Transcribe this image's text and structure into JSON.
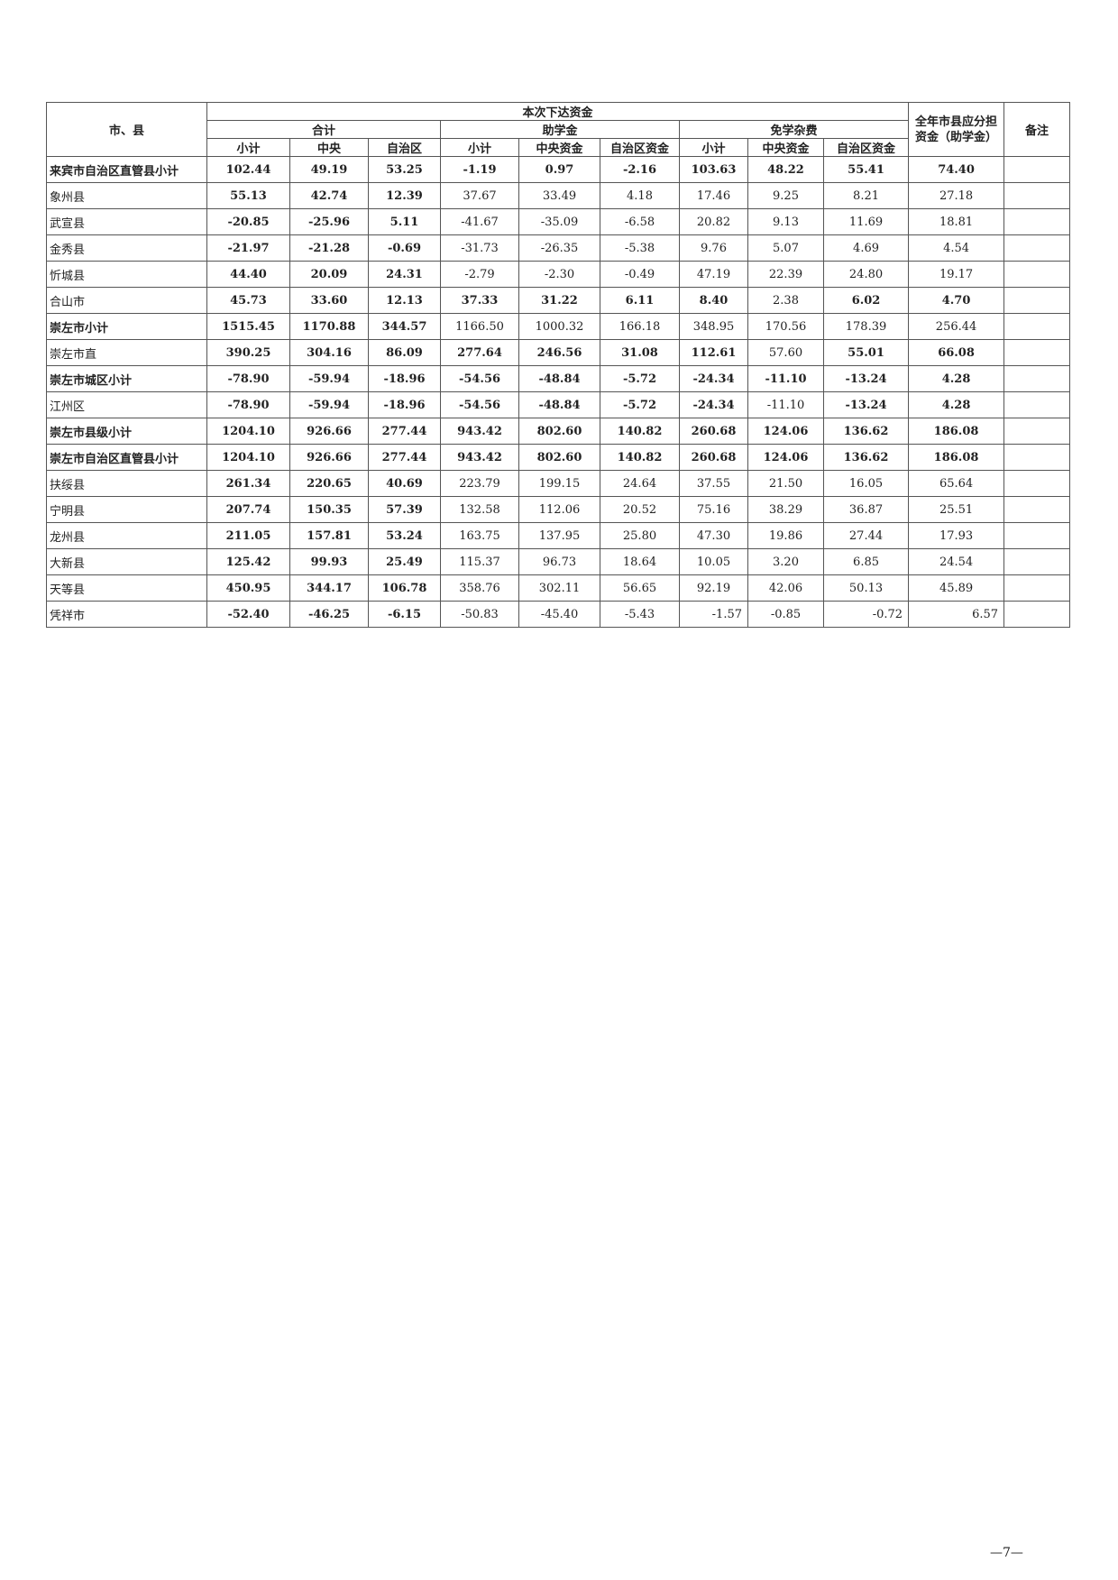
{
  "header": {
    "region": "市、县",
    "this_batch": "本次下达资金",
    "total": "合计",
    "aid": "助学金",
    "fee_waiver": "免学杂费",
    "annual": "全年市县应分担资金（助学金）",
    "remark": "备注",
    "sub": [
      "小计",
      "中央",
      "自治区",
      "小计",
      "中央资金",
      "自治区资金",
      "小计",
      "中央资金",
      "自治区资金"
    ]
  },
  "rows": [
    {
      "name": "来宾市自治区直管县小计",
      "name_bold": true,
      "cells": [
        "102.44",
        "49.19",
        "53.25",
        "-1.19",
        "0.97",
        "-2.16",
        "103.63",
        "48.22",
        "55.41",
        "74.40",
        ""
      ],
      "bold": [
        1,
        1,
        1,
        1,
        1,
        1,
        1,
        1,
        1,
        1,
        0
      ]
    },
    {
      "name": "象州县",
      "name_bold": false,
      "cells": [
        "55.13",
        "42.74",
        "12.39",
        "37.67",
        "33.49",
        "4.18",
        "17.46",
        "9.25",
        "8.21",
        "27.18",
        ""
      ],
      "bold": [
        1,
        1,
        1,
        0,
        0,
        0,
        0,
        0,
        0,
        0,
        0
      ]
    },
    {
      "name": "武宣县",
      "name_bold": false,
      "cells": [
        "-20.85",
        "-25.96",
        "5.11",
        "-41.67",
        "-35.09",
        "-6.58",
        "20.82",
        "9.13",
        "11.69",
        "18.81",
        ""
      ],
      "bold": [
        1,
        1,
        1,
        0,
        0,
        0,
        0,
        0,
        0,
        0,
        0
      ]
    },
    {
      "name": "金秀县",
      "name_bold": false,
      "cells": [
        "-21.97",
        "-21.28",
        "-0.69",
        "-31.73",
        "-26.35",
        "-5.38",
        "9.76",
        "5.07",
        "4.69",
        "4.54",
        ""
      ],
      "bold": [
        1,
        1,
        1,
        0,
        0,
        0,
        0,
        0,
        0,
        0,
        0
      ]
    },
    {
      "name": "忻城县",
      "name_bold": false,
      "cells": [
        "44.40",
        "20.09",
        "24.31",
        "-2.79",
        "-2.30",
        "-0.49",
        "47.19",
        "22.39",
        "24.80",
        "19.17",
        ""
      ],
      "bold": [
        1,
        1,
        1,
        0,
        0,
        0,
        0,
        0,
        0,
        0,
        0
      ]
    },
    {
      "name": "合山市",
      "name_bold": false,
      "cells": [
        "45.73",
        "33.60",
        "12.13",
        "37.33",
        "31.22",
        "6.11",
        "8.40",
        "2.38",
        "6.02",
        "4.70",
        ""
      ],
      "bold": [
        1,
        1,
        1,
        1,
        1,
        1,
        1,
        0,
        1,
        1,
        0
      ]
    },
    {
      "name": "崇左市小计",
      "name_bold": true,
      "cells": [
        "1515.45",
        "1170.88",
        "344.57",
        "1166.50",
        "1000.32",
        "166.18",
        "348.95",
        "170.56",
        "178.39",
        "256.44",
        ""
      ],
      "bold": [
        1,
        1,
        1,
        0,
        0,
        0,
        0,
        0,
        0,
        0,
        0
      ]
    },
    {
      "name": "崇左市直",
      "name_bold": false,
      "cells": [
        "390.25",
        "304.16",
        "86.09",
        "277.64",
        "246.56",
        "31.08",
        "112.61",
        "57.60",
        "55.01",
        "66.08",
        ""
      ],
      "bold": [
        1,
        1,
        1,
        1,
        1,
        1,
        1,
        0,
        1,
        1,
        0
      ]
    },
    {
      "name": "崇左市城区小计",
      "name_bold": true,
      "cells": [
        "-78.90",
        "-59.94",
        "-18.96",
        "-54.56",
        "-48.84",
        "-5.72",
        "-24.34",
        "-11.10",
        "-13.24",
        "4.28",
        ""
      ],
      "bold": [
        1,
        1,
        1,
        1,
        1,
        1,
        1,
        1,
        1,
        1,
        0
      ]
    },
    {
      "name": "江州区",
      "name_bold": false,
      "cells": [
        "-78.90",
        "-59.94",
        "-18.96",
        "-54.56",
        "-48.84",
        "-5.72",
        "-24.34",
        "-11.10",
        "-13.24",
        "4.28",
        ""
      ],
      "bold": [
        1,
        1,
        1,
        1,
        1,
        1,
        1,
        0,
        1,
        1,
        0
      ]
    },
    {
      "name": "崇左市县级小计",
      "name_bold": true,
      "cells": [
        "1204.10",
        "926.66",
        "277.44",
        "943.42",
        "802.60",
        "140.82",
        "260.68",
        "124.06",
        "136.62",
        "186.08",
        ""
      ],
      "bold": [
        1,
        1,
        1,
        1,
        1,
        1,
        1,
        1,
        1,
        1,
        0
      ]
    },
    {
      "name": "崇左市自治区直管县小计",
      "name_bold": true,
      "cells": [
        "1204.10",
        "926.66",
        "277.44",
        "943.42",
        "802.60",
        "140.82",
        "260.68",
        "124.06",
        "136.62",
        "186.08",
        ""
      ],
      "bold": [
        1,
        1,
        1,
        1,
        1,
        1,
        1,
        1,
        1,
        1,
        0
      ]
    },
    {
      "name": "扶绥县",
      "name_bold": false,
      "cells": [
        "261.34",
        "220.65",
        "40.69",
        "223.79",
        "199.15",
        "24.64",
        "37.55",
        "21.50",
        "16.05",
        "65.64",
        ""
      ],
      "bold": [
        1,
        1,
        1,
        0,
        0,
        0,
        0,
        0,
        0,
        0,
        0
      ]
    },
    {
      "name": "宁明县",
      "name_bold": false,
      "cells": [
        "207.74",
        "150.35",
        "57.39",
        "132.58",
        "112.06",
        "20.52",
        "75.16",
        "38.29",
        "36.87",
        "25.51",
        ""
      ],
      "bold": [
        1,
        1,
        1,
        0,
        0,
        0,
        0,
        0,
        0,
        0,
        0
      ]
    },
    {
      "name": "龙州县",
      "name_bold": false,
      "cells": [
        "211.05",
        "157.81",
        "53.24",
        "163.75",
        "137.95",
        "25.80",
        "47.30",
        "19.86",
        "27.44",
        "17.93",
        ""
      ],
      "bold": [
        1,
        1,
        1,
        0,
        0,
        0,
        0,
        0,
        0,
        0,
        0
      ]
    },
    {
      "name": "大新县",
      "name_bold": false,
      "cells": [
        "125.42",
        "99.93",
        "25.49",
        "115.37",
        "96.73",
        "18.64",
        "10.05",
        "3.20",
        "6.85",
        "24.54",
        ""
      ],
      "bold": [
        1,
        1,
        1,
        0,
        0,
        0,
        0,
        0,
        0,
        0,
        0
      ]
    },
    {
      "name": "天等县",
      "name_bold": false,
      "cells": [
        "450.95",
        "344.17",
        "106.78",
        "358.76",
        "302.11",
        "56.65",
        "92.19",
        "42.06",
        "50.13",
        "45.89",
        ""
      ],
      "bold": [
        1,
        1,
        1,
        0,
        0,
        0,
        0,
        0,
        0,
        0,
        0
      ]
    },
    {
      "name": "凭祥市",
      "name_bold": false,
      "cells": [
        "-52.40",
        "-46.25",
        "-6.15",
        "-50.83",
        "-45.40",
        "-5.43",
        "-1.57",
        "-0.85",
        "-0.72",
        "6.57",
        ""
      ],
      "bold": [
        1,
        1,
        1,
        0,
        0,
        0,
        0,
        0,
        0,
        0,
        0
      ]
    }
  ],
  "page_number": "—7—"
}
